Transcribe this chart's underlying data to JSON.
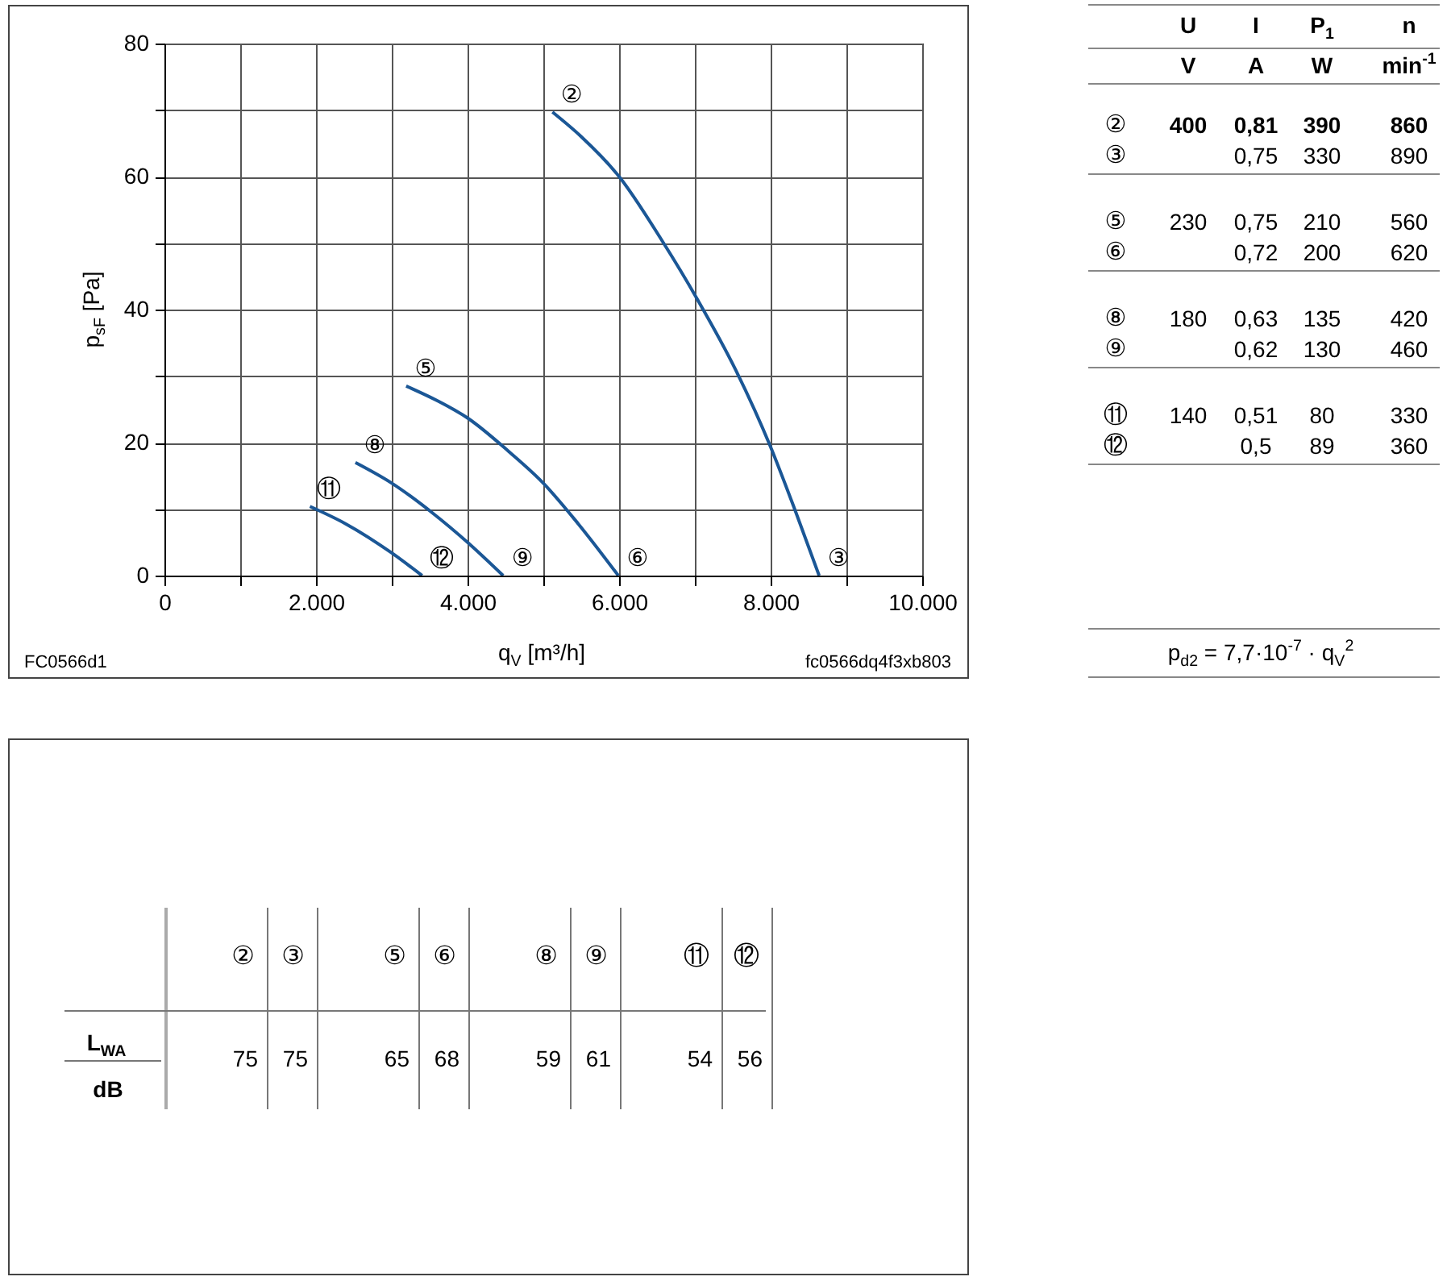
{
  "chart_data": [
    {
      "type": "line",
      "xlabel": "q$_{V}$ [m³/h]",
      "ylabel": "p$_{sF}$ [Pa]",
      "series": [
        {
          "color": "#1b5796",
          "x": [
            5120,
            5500,
            6000,
            6570,
            7040,
            7540,
            7990,
            8320,
            8640
          ],
          "values": [
            69.7,
            66,
            60,
            50.3,
            41.4,
            30.9,
            19.6,
            9.9,
            0
          ]
        },
        {
          "color": "#1b5796",
          "x": [
            3190,
            3600,
            4000,
            4540,
            5000,
            5460,
            5990
          ],
          "values": [
            28.5,
            26.3,
            23.7,
            18.7,
            13.9,
            7.8,
            0
          ]
        },
        {
          "color": "#1b5796",
          "x": [
            2520,
            3000,
            3540,
            4000,
            4470
          ],
          "values": [
            17,
            13.9,
            9.4,
            5,
            0
          ]
        },
        {
          "color": "#1b5796",
          "x": [
            1920,
            2390,
            3000,
            3400
          ],
          "values": [
            10.4,
            7.8,
            3.4,
            0
          ]
        }
      ],
      "xlim": [
        0,
        10000
      ],
      "ylim": [
        0,
        80
      ],
      "xticks": [
        0,
        {
          "value": 1000,
          "label": null
        },
        {
          "value": 2000,
          "label": "2.000"
        },
        {
          "value": 3000,
          "label": null
        },
        {
          "value": 4000,
          "label": "4.000"
        },
        {
          "value": 5000,
          "label": null
        },
        {
          "value": 6000,
          "label": "6.000"
        },
        {
          "value": 7000,
          "label": null
        },
        {
          "value": 8000,
          "label": "8.000"
        },
        {
          "value": 9000,
          "label": null
        },
        {
          "value": 10000,
          "label": "10.000"
        }
      ],
      "yticks": [
        0,
        {
          "value": 10,
          "label": null
        },
        20,
        {
          "value": 30,
          "label": null
        },
        40,
        {
          "value": 50,
          "label": null
        },
        60,
        {
          "value": 70,
          "label": null
        },
        80
      ],
      "grid": true,
      "annotations": [
        {
          "text": "②",
          "x": 5120,
          "y": 69.7
        },
        {
          "text": "③",
          "x": 8640,
          "y": 0
        },
        {
          "text": "⑤",
          "x": 3190,
          "y": 28.5
        },
        {
          "text": "⑥",
          "x": 5990,
          "y": 0
        },
        {
          "text": "⑧",
          "x": 2520,
          "y": 17
        },
        {
          "text": "⑨",
          "x": 4470,
          "y": 0
        },
        {
          "text": "⑪",
          "x": 1920,
          "y": 10.4
        },
        {
          "text": "⑫",
          "x": 3400,
          "y": 0
        },
        "FC0566d1",
        "fc0566dq4f3xb803"
      ]
    },
    {
      "type": "other",
      "categories": [
        "U",
        "I",
        "P$_{1}$",
        "n"
      ],
      "y_categories": [
        null,
        "②",
        "③",
        "⑤",
        "⑥",
        "⑧",
        "⑨",
        "⑪",
        "⑫"
      ],
      "cell_labels": [
        [
          "V",
          "A",
          "W",
          "min$^{-1}$"
        ],
        [
          "400",
          "0,81",
          "390",
          "860"
        ],
        [
          null,
          "0,75",
          "330",
          "890"
        ],
        [
          "230",
          "0,75",
          "210",
          "560"
        ],
        [
          null,
          "0,72",
          "200",
          "620"
        ],
        [
          "180",
          "0,63",
          "135",
          "420"
        ],
        [
          null,
          "0,62",
          "130",
          "460"
        ],
        [
          "140",
          "0,51",
          "80",
          "330"
        ],
        [
          null,
          "0,5",
          "89",
          "360"
        ]
      ],
      "annotations": [
        "p$_{d2}$ = 7,7·10$^{-7}$ · q$_{V}$$^{2}$"
      ]
    },
    {
      "type": "other",
      "categories": [
        "②",
        "③",
        "⑤",
        "⑥",
        "⑧",
        "⑨",
        "⑪",
        "⑫"
      ],
      "y_categories": [
        "L$_{WA}$"
      ],
      "ylabel": "dB",
      "cell_labels": [
        [
          "75",
          "75",
          "65",
          "68",
          "59",
          "61",
          "54",
          "56"
        ]
      ]
    }
  ]
}
